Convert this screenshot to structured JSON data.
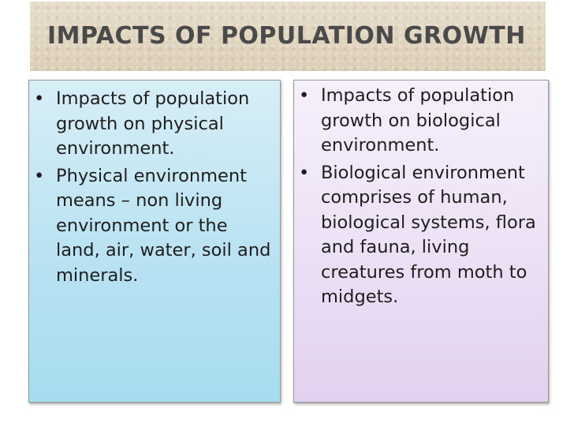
{
  "title": "IMPACTS OF POPULATION GROWTH",
  "left_panel": {
    "bullets": [
      "Impacts of population growth on physical environment.",
      "Physical environment means – non living environment or the land, air, water, soil and minerals."
    ]
  },
  "right_panel": {
    "bullets": [
      "Impacts of population growth on biological environment.",
      "Biological environment comprises of human, biological systems, flora and fauna, living creatures from moth to midgets."
    ]
  },
  "bullet_glyph": "•"
}
